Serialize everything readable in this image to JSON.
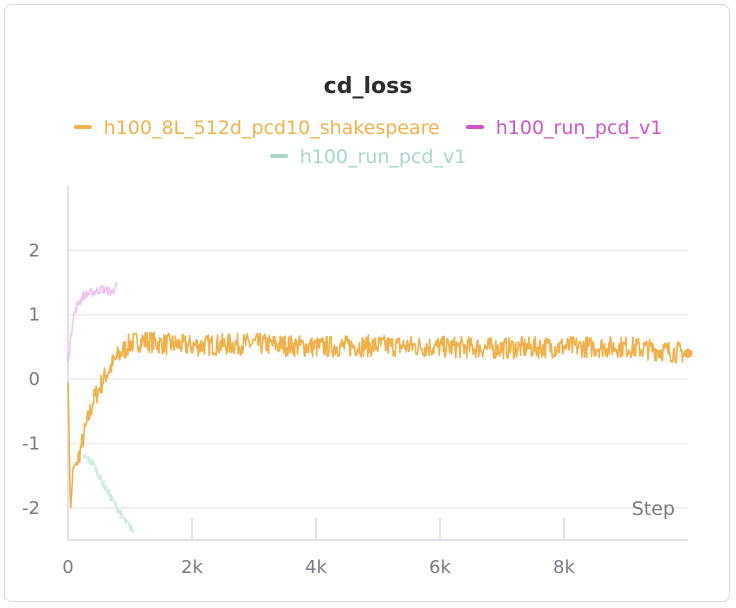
{
  "chart_data": {
    "type": "line",
    "title": "cd_loss",
    "xlabel": "Step",
    "ylabel": "",
    "xlim": [
      0,
      10000
    ],
    "ylim": [
      -2.5,
      3.0
    ],
    "x_ticks": [
      0,
      2000,
      4000,
      6000,
      8000
    ],
    "x_tick_labels": [
      "0",
      "2k",
      "4k",
      "6k",
      "8k"
    ],
    "y_ticks": [
      2,
      1,
      0,
      -1,
      -2
    ],
    "y_tick_labels": [
      "2",
      "1",
      "0",
      "-1",
      "-2"
    ],
    "grid": true,
    "legend_position": "top",
    "series": [
      {
        "name": "h100_8L_512d_pcd10_shakespeare",
        "color": "#f2b24c",
        "line_color": "#f0b04a",
        "opacity": 1.0,
        "x": [
          0,
          40,
          80,
          150,
          250,
          400,
          600,
          800,
          1000,
          1200,
          1500,
          2000,
          3000,
          4000,
          5000,
          6000,
          7000,
          8000,
          9000,
          9500,
          10000
        ],
        "y": [
          0.0,
          -2.1,
          -1.4,
          -1.3,
          -0.9,
          -0.35,
          0.05,
          0.35,
          0.55,
          0.6,
          0.55,
          0.52,
          0.55,
          0.5,
          0.52,
          0.5,
          0.48,
          0.5,
          0.5,
          0.45,
          0.4
        ]
      },
      {
        "name": "h100_run_pcd_v1",
        "color": "#cf55c8",
        "line_color": "#e8b6e6",
        "opacity": 0.75,
        "x": [
          0,
          30,
          80,
          150,
          250,
          400,
          550,
          700,
          800
        ],
        "y": [
          0.3,
          0.5,
          0.95,
          1.15,
          1.3,
          1.35,
          1.4,
          1.35,
          1.45
        ]
      },
      {
        "name": "h100_run_pcd_v1",
        "color": "#a8d7cb",
        "line_color": "#c9e6de",
        "opacity": 0.85,
        "x": [
          250,
          400,
          550,
          700,
          850,
          950,
          1050
        ],
        "y": [
          -1.2,
          -1.3,
          -1.6,
          -1.85,
          -2.1,
          -2.25,
          -2.35
        ]
      }
    ]
  }
}
